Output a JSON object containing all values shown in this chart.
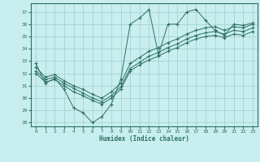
{
  "xlabel": "Humidex (Indice chaleur)",
  "bg_color": "#c8eef0",
  "grid_color": "#a0cccc",
  "line_color": "#2d7060",
  "xlim": [
    -0.5,
    23.5
  ],
  "ylim": [
    27.7,
    37.7
  ],
  "xticks": [
    0,
    1,
    2,
    3,
    4,
    5,
    6,
    7,
    8,
    9,
    10,
    11,
    12,
    13,
    14,
    15,
    16,
    17,
    18,
    19,
    20,
    21,
    22,
    23
  ],
  "yticks": [
    28,
    29,
    30,
    31,
    32,
    33,
    34,
    35,
    36,
    37
  ],
  "line1": {
    "x": [
      0,
      1,
      2,
      3,
      4,
      5,
      6,
      7,
      8,
      9,
      10,
      11,
      12,
      13,
      14,
      15,
      16,
      17,
      18,
      19,
      20,
      21,
      22,
      23
    ],
    "y": [
      32.8,
      31.2,
      31.6,
      30.7,
      29.2,
      28.8,
      28.0,
      28.5,
      29.5,
      31.5,
      36.0,
      36.5,
      37.2,
      33.5,
      36.0,
      36.0,
      37.0,
      37.2,
      36.3,
      35.5,
      35.1,
      36.0,
      35.9,
      36.1
    ]
  },
  "line2": {
    "x": [
      0,
      1,
      2,
      3,
      4,
      5,
      6,
      7,
      8,
      9,
      10,
      11,
      12,
      13,
      14,
      15,
      16,
      17,
      18,
      19,
      20,
      21,
      22,
      23
    ],
    "y": [
      32.5,
      31.7,
      31.9,
      31.4,
      31.0,
      30.7,
      30.3,
      30.0,
      30.5,
      31.2,
      32.8,
      33.3,
      33.8,
      34.1,
      34.5,
      34.8,
      35.2,
      35.5,
      35.7,
      35.8,
      35.5,
      35.8,
      35.7,
      36.0
    ]
  },
  "line3": {
    "x": [
      0,
      1,
      2,
      3,
      4,
      5,
      6,
      7,
      8,
      9,
      10,
      11,
      12,
      13,
      14,
      15,
      16,
      17,
      18,
      19,
      20,
      21,
      22,
      23
    ],
    "y": [
      32.2,
      31.5,
      31.7,
      31.2,
      30.8,
      30.4,
      30.0,
      29.7,
      30.2,
      30.9,
      32.4,
      32.9,
      33.4,
      33.7,
      34.1,
      34.4,
      34.8,
      35.1,
      35.3,
      35.4,
      35.2,
      35.5,
      35.4,
      35.7
    ]
  },
  "line4": {
    "x": [
      0,
      1,
      2,
      3,
      4,
      5,
      6,
      7,
      8,
      9,
      10,
      11,
      12,
      13,
      14,
      15,
      16,
      17,
      18,
      19,
      20,
      21,
      22,
      23
    ],
    "y": [
      32.0,
      31.3,
      31.5,
      31.0,
      30.5,
      30.2,
      29.8,
      29.5,
      30.0,
      30.7,
      32.2,
      32.7,
      33.1,
      33.4,
      33.8,
      34.1,
      34.5,
      34.8,
      35.0,
      35.1,
      34.9,
      35.2,
      35.1,
      35.4
    ]
  }
}
